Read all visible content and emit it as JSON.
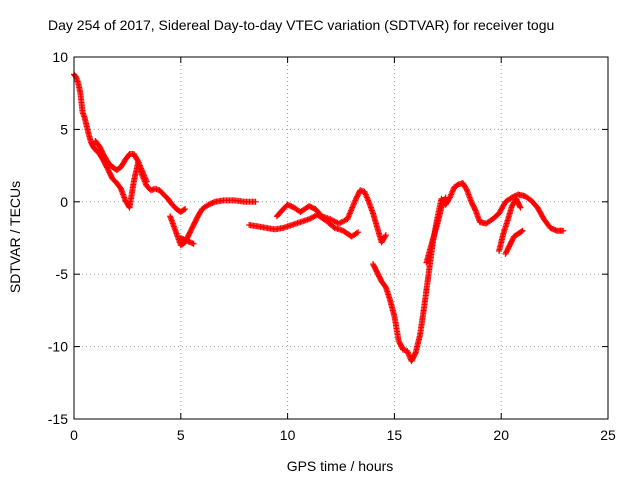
{
  "chart_data": {
    "type": "scatter",
    "title": "Day 254 of 2017, Sidereal Day-to-day VTEC variation (SDTVAR) for receiver togu",
    "xlabel": "GPS time / hours",
    "ylabel": "SDTVAR / TECUs",
    "xlim": [
      0,
      25
    ],
    "ylim": [
      -15,
      10
    ],
    "xticks": [
      "0",
      "5",
      "10",
      "15",
      "20",
      "25"
    ],
    "yticks": [
      "10",
      "5",
      "0",
      "-5",
      "-10",
      "-15"
    ],
    "grid": true,
    "marker": "+",
    "series_color": "#ff0000",
    "series": [
      {
        "name": "segment-1",
        "x": [
          0,
          0.1,
          0.2,
          0.3,
          0.4,
          0.5,
          0.6,
          0.7,
          0.8,
          0.9,
          1.0,
          1.2,
          1.4,
          1.6,
          1.8,
          2.0,
          2.2,
          2.4,
          2.6,
          2.8,
          3.0,
          3.2,
          3.4,
          3.6,
          3.8,
          4.0,
          4.2,
          4.4,
          4.6,
          4.8,
          5.0,
          5.2
        ],
        "y": [
          8.8,
          8.6,
          8.2,
          7.5,
          6.2,
          5.8,
          5.2,
          4.6,
          4.1,
          3.8,
          3.6,
          3.3,
          2.8,
          2.2,
          1.6,
          1.3,
          0.9,
          0.1,
          -0.4,
          1.4,
          2.7,
          1.8,
          1.1,
          0.8,
          0.9,
          0.8,
          0.5,
          0.2,
          -0.2,
          -0.5,
          -0.7,
          -0.5
        ]
      },
      {
        "name": "segment-2",
        "x": [
          1.0,
          1.2,
          1.4,
          1.6,
          1.8,
          2.0,
          2.2,
          2.4,
          2.6,
          2.8,
          3.0,
          3.2,
          3.4
        ],
        "y": [
          4.2,
          3.8,
          3.2,
          2.7,
          2.4,
          2.2,
          2.4,
          2.9,
          3.3,
          3.3,
          2.8,
          2.1,
          1.4
        ]
      },
      {
        "name": "segment-3",
        "x": [
          4.5,
          4.7,
          4.9,
          5.0,
          5.2,
          5.4,
          5.6,
          5.8,
          6.0,
          6.3,
          6.6,
          7.0,
          7.5,
          8.0,
          8.5
        ],
        "y": [
          -1.0,
          -1.8,
          -2.6,
          -3.0,
          -2.8,
          -2.2,
          -1.6,
          -1.0,
          -0.5,
          -0.2,
          0.0,
          0.1,
          0.1,
          0.0,
          0.0
        ]
      },
      {
        "name": "segment-4",
        "x": [
          5.0,
          5.3,
          5.6
        ],
        "y": [
          -2.5,
          -2.7,
          -2.9
        ]
      },
      {
        "name": "segment-5",
        "x": [
          8.2,
          8.6,
          9.0,
          9.4,
          9.8,
          10.2,
          10.6,
          11.0,
          11.4,
          11.8,
          12.2,
          12.6,
          13.0,
          13.3
        ],
        "y": [
          -1.6,
          -1.7,
          -1.8,
          -1.9,
          -1.8,
          -1.6,
          -1.4,
          -1.2,
          -0.9,
          -1.3,
          -1.8,
          -2.0,
          -2.4,
          -2.1
        ]
      },
      {
        "name": "segment-6",
        "x": [
          9.5,
          9.8,
          10.0,
          10.3,
          10.6,
          11.0,
          11.3,
          11.6,
          12.0,
          12.4,
          12.8,
          13.0,
          13.2,
          13.4,
          13.6,
          13.8,
          14.0,
          14.2,
          14.4,
          14.6
        ],
        "y": [
          -1.0,
          -0.5,
          -0.2,
          -0.4,
          -0.7,
          -0.3,
          -0.5,
          -1.0,
          -1.2,
          -1.5,
          -1.2,
          -0.5,
          0.2,
          0.8,
          0.7,
          0.0,
          -0.8,
          -1.8,
          -2.8,
          -2.3
        ]
      },
      {
        "name": "segment-7",
        "x": [
          14.0,
          14.2,
          14.4,
          14.6,
          14.8,
          15.0,
          15.2,
          15.4,
          15.6,
          15.8,
          16.0,
          16.2,
          16.4,
          16.6,
          16.8,
          17.0,
          17.2,
          17.4,
          17.6,
          17.8,
          18.0,
          18.2,
          18.4,
          18.6,
          18.8,
          19.0,
          19.3,
          19.6,
          19.9,
          20.2,
          20.5,
          20.8,
          21.1,
          21.4,
          21.7,
          22.0,
          22.3,
          22.6,
          22.9
        ],
        "y": [
          -4.3,
          -4.9,
          -5.5,
          -5.9,
          -6.8,
          -7.9,
          -9.6,
          -10.2,
          -10.3,
          -11.0,
          -10.4,
          -9.2,
          -7.2,
          -5.0,
          -2.8,
          -1.2,
          0.2,
          -0.2,
          0.3,
          1.0,
          1.2,
          1.3,
          0.8,
          0.0,
          -0.6,
          -1.4,
          -1.5,
          -1.2,
          -0.8,
          0.0,
          0.3,
          0.5,
          0.4,
          0.1,
          -0.4,
          -1.2,
          -1.8,
          -2.0,
          -2.0
        ]
      },
      {
        "name": "segment-8",
        "x": [
          16.5,
          16.8,
          17.0,
          17.2,
          17.4
        ],
        "y": [
          -4.2,
          -2.6,
          -1.6,
          -0.4,
          0.3
        ]
      },
      {
        "name": "segment-9",
        "x": [
          19.9,
          20.1,
          20.3,
          20.5,
          20.7,
          20.9
        ],
        "y": [
          -3.4,
          -2.2,
          -1.3,
          -0.3,
          0.2,
          -0.4
        ]
      },
      {
        "name": "segment-10",
        "x": [
          20.2,
          20.4,
          20.6,
          20.8,
          21.0
        ],
        "y": [
          -3.6,
          -3.0,
          -2.4,
          -2.2,
          -2.0
        ]
      }
    ]
  }
}
